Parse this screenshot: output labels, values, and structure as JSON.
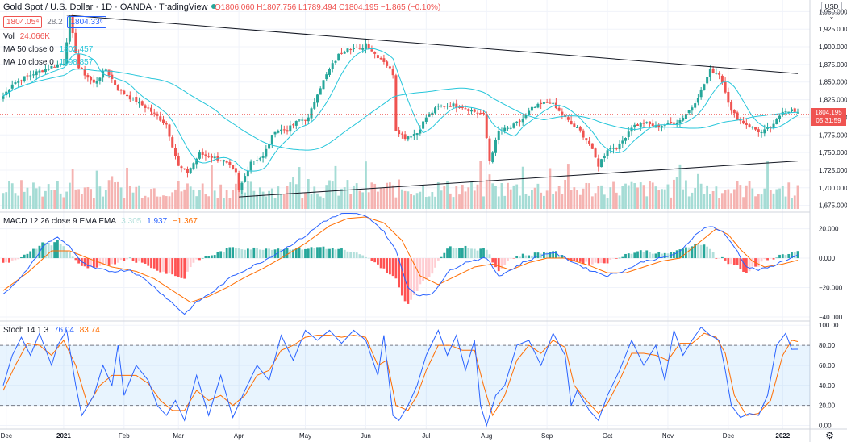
{
  "header": {
    "title": "Gold Spot / U.S. Dollar · 1D · OANDA · TradingView",
    "open": "O1806.060",
    "high": "H1807.756",
    "low": "L1789.494",
    "close": "C1804.195",
    "change": "−1.865 (−0.10%)",
    "bid": "1804.05⁴",
    "spread": "28.2",
    "ask": "1804.33⁶"
  },
  "legend": {
    "vol_label": "Vol",
    "vol_value": "24.066K",
    "ma50_label": "MA 50 close 0",
    "ma50_value": "1802.457",
    "ma10_label": "MA 10 close 0",
    "ma10_value": "1798.857",
    "macd_label": "MACD 12 26 close 9 EMA EMA",
    "macd_hist": "3.305",
    "macd_line": "1.937",
    "macd_signal": "−1.367",
    "stoch_label": "Stoch 14 1 3",
    "stoch_k": "76.04",
    "stoch_d": "83.74"
  },
  "price_tag": {
    "price": "1804.195",
    "countdown": "05:31:59"
  },
  "currency_button": "USD ⌄",
  "colors": {
    "up": "#26a69a",
    "down": "#ef5350",
    "ma_cyan": "#26c6da",
    "macd_blue": "#2962ff",
    "signal_orange": "#ff6d00"
  },
  "chart_data": [
    {
      "type": "candlestick",
      "title": "Gold Spot / U.S. Dollar, 1D",
      "x_tick_labels": [
        "Dec",
        "2021",
        "Feb",
        "Mar",
        "Apr",
        "May",
        "Jun",
        "Jul",
        "Aug",
        "Sep",
        "Oct",
        "Nov",
        "Dec",
        "2022"
      ],
      "x_tick_index": [
        1,
        20,
        40,
        58,
        78,
        100,
        120,
        140,
        160,
        180,
        200,
        220,
        240,
        258
      ],
      "y_ticks": [
        1675,
        1700,
        1725,
        1750,
        1775,
        1800,
        1825,
        1850,
        1875,
        1900,
        1925,
        1950
      ],
      "y_tick_labels": [
        "1,675.000",
        "1,700.000",
        "1,725.000",
        "1,750.000",
        "1,775.000",
        "1,800.000",
        "1,825.000",
        "1,850.000",
        "1,875.000",
        "1,900.000",
        "1,925.000",
        "1,950.000"
      ],
      "ylim": [
        1665,
        1960
      ],
      "close_anchors": [
        [
          0,
          1830
        ],
        [
          3,
          1848
        ],
        [
          10,
          1862
        ],
        [
          20,
          1878
        ],
        [
          22,
          1940
        ],
        [
          25,
          1870
        ],
        [
          30,
          1848
        ],
        [
          34,
          1868
        ],
        [
          38,
          1840
        ],
        [
          42,
          1828
        ],
        [
          48,
          1812
        ],
        [
          54,
          1790
        ],
        [
          58,
          1730
        ],
        [
          61,
          1722
        ],
        [
          65,
          1748
        ],
        [
          69,
          1744
        ],
        [
          73,
          1738
        ],
        [
          77,
          1720
        ],
        [
          78,
          1695
        ],
        [
          82,
          1738
        ],
        [
          86,
          1744
        ],
        [
          90,
          1782
        ],
        [
          94,
          1782
        ],
        [
          98,
          1796
        ],
        [
          101,
          1798
        ],
        [
          104,
          1835
        ],
        [
          108,
          1868
        ],
        [
          111,
          1888
        ],
        [
          114,
          1900
        ],
        [
          118,
          1895
        ],
        [
          120,
          1905
        ],
        [
          123,
          1890
        ],
        [
          126,
          1880
        ],
        [
          129,
          1862
        ],
        [
          130,
          1783
        ],
        [
          133,
          1772
        ],
        [
          137,
          1778
        ],
        [
          140,
          1800
        ],
        [
          144,
          1815
        ],
        [
          148,
          1818
        ],
        [
          152,
          1815
        ],
        [
          156,
          1808
        ],
        [
          159,
          1803
        ],
        [
          161,
          1738
        ],
        [
          164,
          1780
        ],
        [
          168,
          1785
        ],
        [
          172,
          1798
        ],
        [
          175,
          1812
        ],
        [
          178,
          1818
        ],
        [
          181,
          1822
        ],
        [
          184,
          1808
        ],
        [
          188,
          1790
        ],
        [
          191,
          1780
        ],
        [
          194,
          1762
        ],
        [
          197,
          1732
        ],
        [
          200,
          1755
        ],
        [
          204,
          1760
        ],
        [
          208,
          1787
        ],
        [
          212,
          1792
        ],
        [
          216,
          1787
        ],
        [
          220,
          1790
        ],
        [
          224,
          1796
        ],
        [
          228,
          1815
        ],
        [
          231,
          1838
        ],
        [
          234,
          1866
        ],
        [
          237,
          1862
        ],
        [
          239,
          1838
        ],
        [
          241,
          1808
        ],
        [
          244,
          1795
        ],
        [
          248,
          1785
        ],
        [
          251,
          1778
        ],
        [
          255,
          1788
        ],
        [
          258,
          1810
        ],
        [
          261,
          1810
        ],
        [
          263,
          1804
        ]
      ],
      "volume_range": [
        0,
        30
      ],
      "volume_last": 24.066,
      "trendlines": [
        {
          "name": "descending-resistance",
          "from": [
            21,
            1945
          ],
          "to": [
            263,
            1862
          ]
        },
        {
          "name": "ascending-support",
          "from": [
            78,
            1687
          ],
          "to": [
            263,
            1738
          ]
        }
      ],
      "ma10_last": 1798.857,
      "ma50_last": 1802.457,
      "last_price": 1804.195
    },
    {
      "type": "macd",
      "y_ticks": [
        -40,
        -20,
        0,
        20
      ],
      "y_tick_labels": [
        "−40.000",
        "−20.000",
        "0.000",
        "20.000"
      ],
      "ylim": [
        -40,
        28
      ],
      "macd_anchors": [
        [
          0,
          -25
        ],
        [
          8,
          -8
        ],
        [
          14,
          10
        ],
        [
          18,
          14
        ],
        [
          22,
          8
        ],
        [
          26,
          -3
        ],
        [
          30,
          -7
        ],
        [
          36,
          -9
        ],
        [
          42,
          -8
        ],
        [
          48,
          -16
        ],
        [
          54,
          -27
        ],
        [
          60,
          -38
        ],
        [
          64,
          -30
        ],
        [
          70,
          -22
        ],
        [
          76,
          -12
        ],
        [
          80,
          -8
        ],
        [
          86,
          -2
        ],
        [
          92,
          5
        ],
        [
          100,
          15
        ],
        [
          106,
          25
        ],
        [
          112,
          30
        ],
        [
          118,
          30
        ],
        [
          122,
          26
        ],
        [
          126,
          18
        ],
        [
          130,
          5
        ],
        [
          134,
          -20
        ],
        [
          138,
          -26
        ],
        [
          142,
          -24
        ],
        [
          148,
          -8
        ],
        [
          154,
          -2
        ],
        [
          160,
          0
        ],
        [
          164,
          -12
        ],
        [
          168,
          -8
        ],
        [
          172,
          -3
        ],
        [
          178,
          2
        ],
        [
          182,
          4
        ],
        [
          188,
          -2
        ],
        [
          194,
          -8
        ],
        [
          200,
          -12
        ],
        [
          206,
          -8
        ],
        [
          212,
          -2
        ],
        [
          218,
          0
        ],
        [
          224,
          4
        ],
        [
          230,
          18
        ],
        [
          234,
          22
        ],
        [
          238,
          18
        ],
        [
          242,
          8
        ],
        [
          246,
          -6
        ],
        [
          250,
          -8
        ],
        [
          254,
          -6
        ],
        [
          258,
          -2
        ],
        [
          262,
          1
        ],
        [
          263,
          1.937
        ]
      ],
      "signal_anchors": [
        [
          0,
          -22
        ],
        [
          8,
          -10
        ],
        [
          16,
          5
        ],
        [
          22,
          5
        ],
        [
          28,
          0
        ],
        [
          36,
          -6
        ],
        [
          44,
          -9
        ],
        [
          50,
          -14
        ],
        [
          56,
          -22
        ],
        [
          62,
          -30
        ],
        [
          68,
          -26
        ],
        [
          74,
          -20
        ],
        [
          80,
          -13
        ],
        [
          86,
          -7
        ],
        [
          92,
          0
        ],
        [
          100,
          10
        ],
        [
          108,
          22
        ],
        [
          114,
          27
        ],
        [
          120,
          28
        ],
        [
          126,
          24
        ],
        [
          132,
          12
        ],
        [
          138,
          -12
        ],
        [
          144,
          -18
        ],
        [
          150,
          -12
        ],
        [
          156,
          -6
        ],
        [
          162,
          -4
        ],
        [
          168,
          -8
        ],
        [
          174,
          -3
        ],
        [
          180,
          0
        ],
        [
          186,
          0
        ],
        [
          194,
          -5
        ],
        [
          200,
          -10
        ],
        [
          206,
          -10
        ],
        [
          212,
          -6
        ],
        [
          218,
          -2
        ],
        [
          224,
          0
        ],
        [
          230,
          10
        ],
        [
          236,
          20
        ],
        [
          240,
          16
        ],
        [
          244,
          6
        ],
        [
          248,
          -2
        ],
        [
          252,
          -6
        ],
        [
          258,
          -4
        ],
        [
          263,
          -1.367
        ]
      ],
      "macd_last": 1.937,
      "signal_last": -1.367,
      "hist_last": 3.305
    },
    {
      "type": "stochastic",
      "y_ticks": [
        0,
        20,
        40,
        60,
        80,
        100
      ],
      "y_tick_labels": [
        "0.00",
        "20.00",
        "40.00",
        "60.00",
        "80.00",
        "100.00"
      ],
      "ylim": [
        -2,
        101
      ],
      "band": [
        20,
        80
      ],
      "k_anchors": [
        [
          0,
          40
        ],
        [
          3,
          70
        ],
        [
          6,
          88
        ],
        [
          9,
          70
        ],
        [
          12,
          92
        ],
        [
          16,
          60
        ],
        [
          18,
          80
        ],
        [
          21,
          95
        ],
        [
          24,
          40
        ],
        [
          26,
          10
        ],
        [
          30,
          30
        ],
        [
          33,
          60
        ],
        [
          36,
          40
        ],
        [
          38,
          80
        ],
        [
          40,
          30
        ],
        [
          44,
          60
        ],
        [
          48,
          45
        ],
        [
          51,
          20
        ],
        [
          54,
          10
        ],
        [
          57,
          25
        ],
        [
          60,
          5
        ],
        [
          64,
          50
        ],
        [
          68,
          10
        ],
        [
          72,
          50
        ],
        [
          76,
          8
        ],
        [
          80,
          35
        ],
        [
          84,
          60
        ],
        [
          88,
          45
        ],
        [
          92,
          90
        ],
        [
          96,
          65
        ],
        [
          100,
          95
        ],
        [
          104,
          85
        ],
        [
          108,
          95
        ],
        [
          112,
          82
        ],
        [
          116,
          95
        ],
        [
          120,
          85
        ],
        [
          124,
          50
        ],
        [
          126,
          90
        ],
        [
          129,
          10
        ],
        [
          131,
          5
        ],
        [
          134,
          20
        ],
        [
          137,
          40
        ],
        [
          140,
          70
        ],
        [
          144,
          95
        ],
        [
          147,
          70
        ],
        [
          150,
          90
        ],
        [
          153,
          55
        ],
        [
          156,
          85
        ],
        [
          158,
          20
        ],
        [
          160,
          0
        ],
        [
          163,
          30
        ],
        [
          166,
          40
        ],
        [
          170,
          80
        ],
        [
          174,
          85
        ],
        [
          178,
          60
        ],
        [
          182,
          92
        ],
        [
          186,
          70
        ],
        [
          188,
          20
        ],
        [
          190,
          35
        ],
        [
          194,
          15
        ],
        [
          197,
          5
        ],
        [
          200,
          30
        ],
        [
          204,
          55
        ],
        [
          208,
          85
        ],
        [
          212,
          60
        ],
        [
          216,
          80
        ],
        [
          219,
          45
        ],
        [
          222,
          95
        ],
        [
          225,
          70
        ],
        [
          228,
          85
        ],
        [
          231,
          98
        ],
        [
          234,
          90
        ],
        [
          237,
          85
        ],
        [
          239,
          55
        ],
        [
          241,
          20
        ],
        [
          244,
          8
        ],
        [
          247,
          12
        ],
        [
          250,
          10
        ],
        [
          253,
          30
        ],
        [
          256,
          80
        ],
        [
          259,
          92
        ],
        [
          261,
          76
        ],
        [
          263,
          76.04
        ]
      ],
      "d_anchors": [
        [
          0,
          35
        ],
        [
          4,
          60
        ],
        [
          8,
          82
        ],
        [
          12,
          80
        ],
        [
          16,
          70
        ],
        [
          20,
          85
        ],
        [
          24,
          60
        ],
        [
          28,
          20
        ],
        [
          32,
          40
        ],
        [
          36,
          50
        ],
        [
          40,
          50
        ],
        [
          44,
          50
        ],
        [
          48,
          42
        ],
        [
          52,
          25
        ],
        [
          56,
          15
        ],
        [
          60,
          15
        ],
        [
          64,
          35
        ],
        [
          68,
          25
        ],
        [
          72,
          30
        ],
        [
          76,
          20
        ],
        [
          80,
          30
        ],
        [
          84,
          50
        ],
        [
          88,
          55
        ],
        [
          92,
          75
        ],
        [
          96,
          80
        ],
        [
          100,
          88
        ],
        [
          104,
          90
        ],
        [
          108,
          90
        ],
        [
          112,
          88
        ],
        [
          116,
          90
        ],
        [
          120,
          88
        ],
        [
          124,
          60
        ],
        [
          127,
          65
        ],
        [
          130,
          20
        ],
        [
          134,
          15
        ],
        [
          137,
          30
        ],
        [
          140,
          55
        ],
        [
          144,
          80
        ],
        [
          148,
          80
        ],
        [
          152,
          75
        ],
        [
          156,
          75
        ],
        [
          159,
          40
        ],
        [
          162,
          10
        ],
        [
          166,
          30
        ],
        [
          170,
          65
        ],
        [
          174,
          80
        ],
        [
          178,
          72
        ],
        [
          182,
          85
        ],
        [
          186,
          78
        ],
        [
          189,
          40
        ],
        [
          193,
          25
        ],
        [
          197,
          12
        ],
        [
          200,
          22
        ],
        [
          204,
          45
        ],
        [
          208,
          72
        ],
        [
          212,
          72
        ],
        [
          216,
          70
        ],
        [
          220,
          65
        ],
        [
          224,
          82
        ],
        [
          228,
          82
        ],
        [
          232,
          92
        ],
        [
          236,
          88
        ],
        [
          239,
          72
        ],
        [
          242,
          30
        ],
        [
          246,
          10
        ],
        [
          250,
          12
        ],
        [
          254,
          25
        ],
        [
          258,
          70
        ],
        [
          261,
          85
        ],
        [
          263,
          83.74
        ]
      ],
      "k_last": 76.04,
      "d_last": 83.74
    }
  ]
}
